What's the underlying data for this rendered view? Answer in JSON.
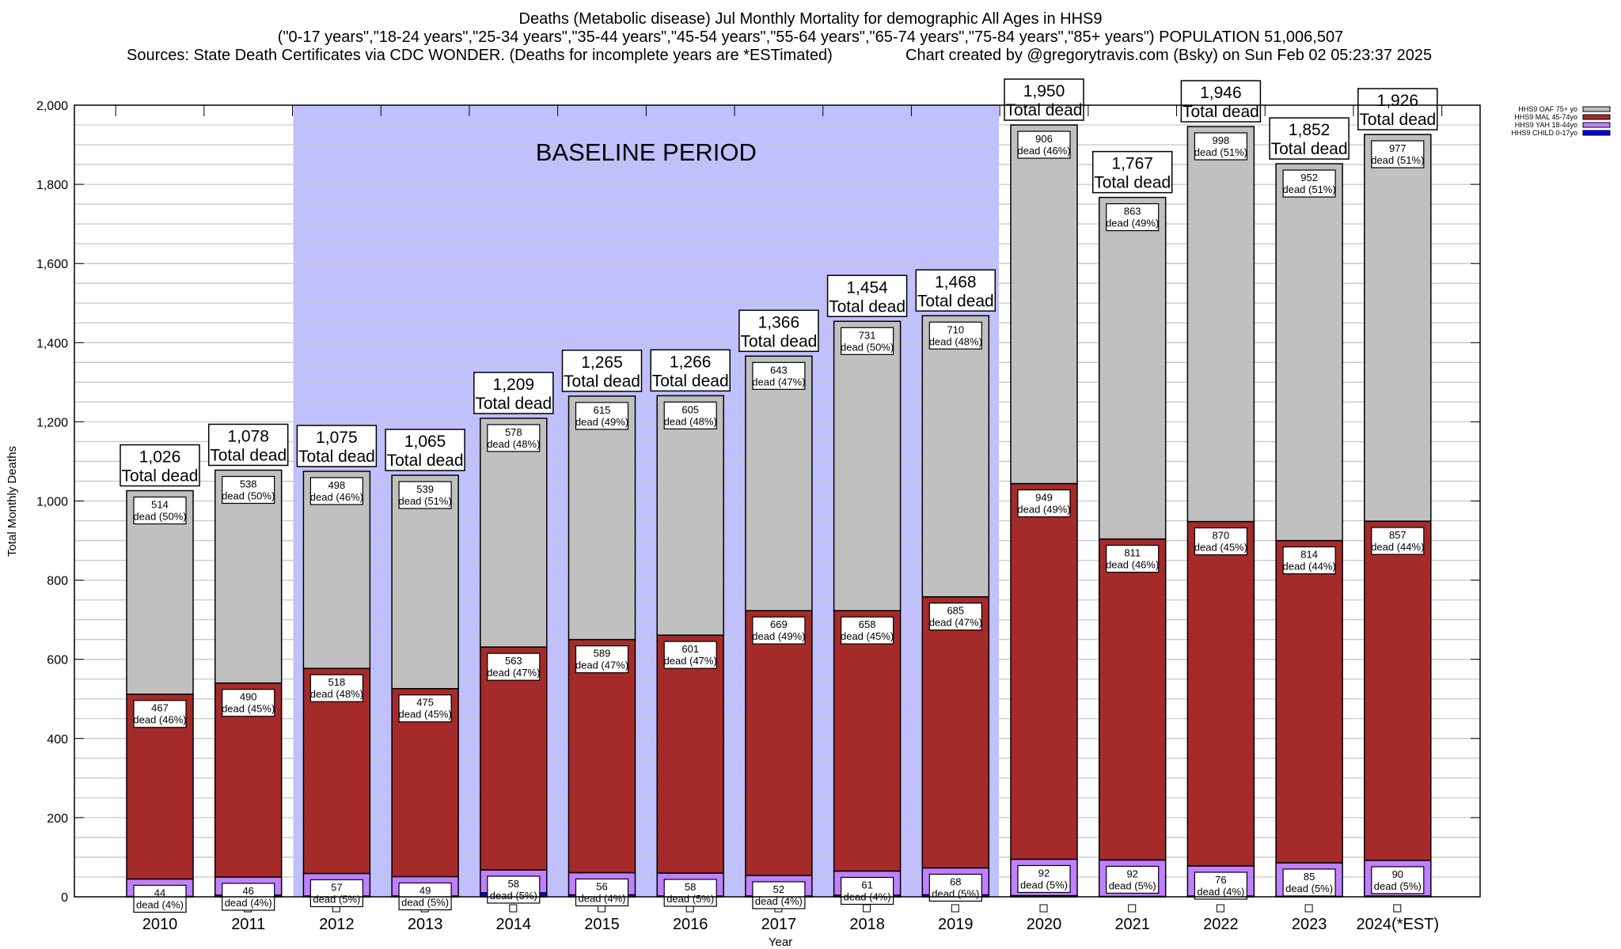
{
  "chart_data": {
    "type": "bar",
    "stacked": true,
    "title_lines": [
      "Deaths (Metabolic disease) Jul Monthly Mortality for demographic All Ages in HHS9",
      "(\"0-17 years\",\"18-24 years\",\"25-34 years\",\"35-44 years\",\"45-54 years\",\"55-64 years\",\"65-74 years\",\"75-84 years\",\"85+ years\") POPULATION 51,006,507"
    ],
    "sources": "Sources: State Death Certificates via CDC WONDER. (Deaths for incomplete years are *ESTimated)",
    "credit": "Chart created by @gregorytravis.com (Bsky) on Sun Feb 02 05:23:37 2025",
    "xlabel": "Year",
    "ylabel": "Total Monthly Deaths",
    "ylim": [
      0,
      2000
    ],
    "yticks": [
      0,
      200,
      400,
      600,
      800,
      1000,
      1200,
      1400,
      1600,
      1800,
      2000
    ],
    "ytick_labels": [
      "0",
      "200",
      "400",
      "600",
      "800",
      "1,000",
      "1,200",
      "1,400",
      "1,600",
      "1,800",
      "2,000"
    ],
    "grid": true,
    "legend_placement": "top-right",
    "annotation": {
      "text": "BASELINE PERIOD",
      "from": "2012",
      "to": "2019",
      "color": "#c0c0ff"
    },
    "total_suffix": "Total dead",
    "segment_suffix": "dead",
    "categories": [
      "2010",
      "2011",
      "2012",
      "2013",
      "2014",
      "2015",
      "2016",
      "2017",
      "2018",
      "2019",
      "2020",
      "2021",
      "2022",
      "2023",
      "2024(*EST)"
    ],
    "totals": [
      1026,
      1078,
      1075,
      1065,
      1209,
      1265,
      1266,
      1366,
      1454,
      1468,
      1950,
      1767,
      1946,
      1852,
      1926
    ],
    "total_labels": [
      "1,026",
      "1,078",
      "1,075",
      "1,065",
      "1,209",
      "1,265",
      "1,266",
      "1,366",
      "1,454",
      "1,468",
      "1,950",
      "1,767",
      "1,946",
      "1,852",
      "1,926"
    ],
    "series": [
      {
        "name": "HHS9 CHILD 0-17yo",
        "color": "#0000ee",
        "values": [
          1,
          4,
          2,
          2,
          10,
          5,
          2,
          2,
          4,
          5,
          3,
          1,
          2,
          1,
          2
        ]
      },
      {
        "name": "HHS9 YAH 18-44yo",
        "color": "#c080ff",
        "values": [
          44,
          46,
          57,
          49,
          58,
          56,
          58,
          52,
          61,
          68,
          92,
          92,
          76,
          85,
          90
        ],
        "pct": [
          4,
          4,
          5,
          5,
          5,
          4,
          5,
          4,
          4,
          5,
          5,
          5,
          4,
          5,
          5
        ]
      },
      {
        "name": "HHS9 MAL 45-74yo",
        "color": "#a52a2a",
        "values": [
          467,
          490,
          518,
          475,
          563,
          589,
          601,
          669,
          658,
          685,
          949,
          811,
          870,
          814,
          857
        ],
        "pct": [
          46,
          45,
          48,
          45,
          47,
          47,
          47,
          49,
          45,
          47,
          49,
          46,
          45,
          44,
          44
        ]
      },
      {
        "name": "HHS9 OAF 75+ yo",
        "color": "#c0c0c0",
        "values": [
          514,
          538,
          498,
          539,
          578,
          615,
          605,
          643,
          731,
          710,
          906,
          863,
          998,
          952,
          977
        ],
        "pct": [
          50,
          50,
          46,
          51,
          48,
          49,
          48,
          47,
          50,
          48,
          46,
          49,
          51,
          51,
          51
        ]
      }
    ]
  }
}
